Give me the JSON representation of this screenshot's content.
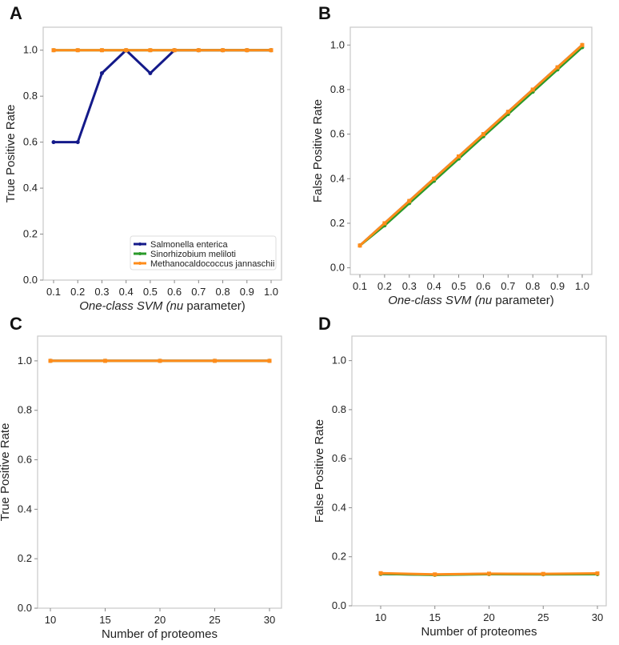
{
  "colors": {
    "salmonella": "#141a8a",
    "sinorhizobium": "#2a9a2a",
    "methano": "#ff8c1a"
  },
  "chart_data": [
    {
      "panel": "A",
      "type": "line",
      "xlabel": "One-class SVM (nu parameter)",
      "ylabel": "True Positive Rate",
      "x": [
        0.1,
        0.2,
        0.3,
        0.4,
        0.5,
        0.6,
        0.7,
        0.8,
        0.9,
        1.0
      ],
      "xticks": [
        "0.1",
        "0.2",
        "0.3",
        "0.4",
        "0.5",
        "0.6",
        "0.7",
        "0.8",
        "0.9",
        "1.0"
      ],
      "yticks": [
        "0.0",
        "0.2",
        "0.4",
        "0.6",
        "0.8",
        "1.0"
      ],
      "ylim": [
        0,
        1.1
      ],
      "legend": {
        "placement": "lower-right",
        "entries": [
          "Salmonella enterica",
          "Sinorhizobium meliloti",
          "Methanocaldococcus jannaschii"
        ]
      },
      "series": [
        {
          "name": "Salmonella enterica",
          "color": "#141a8a",
          "values": [
            0.6,
            0.6,
            0.9,
            1.0,
            0.9,
            1.0,
            1.0,
            1.0,
            1.0,
            1.0
          ]
        },
        {
          "name": "Sinorhizobium meliloti",
          "color": "#2a9a2a",
          "values": [
            1,
            1,
            1,
            1,
            1,
            1,
            1,
            1,
            1,
            1
          ]
        },
        {
          "name": "Methanocaldococcus jannaschii",
          "color": "#ff8c1a",
          "values": [
            1,
            1,
            1,
            1,
            1,
            1,
            1,
            1,
            1,
            1
          ]
        }
      ]
    },
    {
      "panel": "B",
      "type": "line",
      "xlabel": "One-class SVM (nu parameter)",
      "ylabel": "False Positive Rate",
      "x": [
        0.1,
        0.2,
        0.3,
        0.4,
        0.5,
        0.6,
        0.7,
        0.8,
        0.9,
        1.0
      ],
      "xticks": [
        "0.1",
        "0.2",
        "0.3",
        "0.4",
        "0.5",
        "0.6",
        "0.7",
        "0.8",
        "0.9",
        "1.0"
      ],
      "yticks": [
        "0.0",
        "0.2",
        "0.4",
        "0.6",
        "0.8",
        "1.0"
      ],
      "ylim": [
        -0.03,
        1.08
      ],
      "series": [
        {
          "name": "Salmonella enterica",
          "color": "#141a8a",
          "values": [
            0.1,
            0.2,
            0.3,
            0.4,
            0.5,
            0.6,
            0.7,
            0.8,
            0.9,
            1.0
          ]
        },
        {
          "name": "Sinorhizobium meliloti",
          "color": "#2a9a2a",
          "values": [
            0.1,
            0.19,
            0.29,
            0.39,
            0.49,
            0.59,
            0.69,
            0.79,
            0.89,
            0.99
          ]
        },
        {
          "name": "Methanocaldococcus jannaschii",
          "color": "#ff8c1a",
          "values": [
            0.1,
            0.2,
            0.3,
            0.4,
            0.5,
            0.6,
            0.7,
            0.8,
            0.9,
            1.0
          ]
        }
      ]
    },
    {
      "panel": "C",
      "type": "line",
      "xlabel": "Number of proteomes",
      "ylabel": "True Positive Rate",
      "x": [
        10,
        15,
        20,
        25,
        30
      ],
      "xticks": [
        "10",
        "15",
        "20",
        "25",
        "30"
      ],
      "yticks": [
        "0.0",
        "0.2",
        "0.4",
        "0.6",
        "0.8",
        "1.0"
      ],
      "ylim": [
        0,
        1.1
      ],
      "series": [
        {
          "name": "Salmonella enterica",
          "color": "#141a8a",
          "values": [
            1,
            1,
            1,
            1,
            1
          ]
        },
        {
          "name": "Sinorhizobium meliloti",
          "color": "#2a9a2a",
          "values": [
            1,
            1,
            1,
            1,
            1
          ]
        },
        {
          "name": "Methanocaldococcus jannaschii",
          "color": "#ff8c1a",
          "values": [
            1,
            1,
            1,
            1,
            1
          ]
        }
      ]
    },
    {
      "panel": "D",
      "type": "line",
      "xlabel": "Number of proteomes",
      "ylabel": "False Positive Rate",
      "x": [
        10,
        15,
        20,
        25,
        30
      ],
      "xticks": [
        "10",
        "15",
        "20",
        "25",
        "30"
      ],
      "yticks": [
        "0.0",
        "0.2",
        "0.4",
        "0.6",
        "0.8",
        "1.0"
      ],
      "ylim": [
        0,
        1.1
      ],
      "series": [
        {
          "name": "Salmonella enterica",
          "color": "#141a8a",
          "values": [
            0.13,
            0.127,
            0.13,
            0.129,
            0.13
          ]
        },
        {
          "name": "Sinorhizobium meliloti",
          "color": "#2a9a2a",
          "values": [
            0.13,
            0.126,
            0.129,
            0.128,
            0.129
          ]
        },
        {
          "name": "Methanocaldococcus jannaschii",
          "color": "#ff8c1a",
          "values": [
            0.133,
            0.128,
            0.131,
            0.13,
            0.132
          ]
        }
      ]
    }
  ]
}
